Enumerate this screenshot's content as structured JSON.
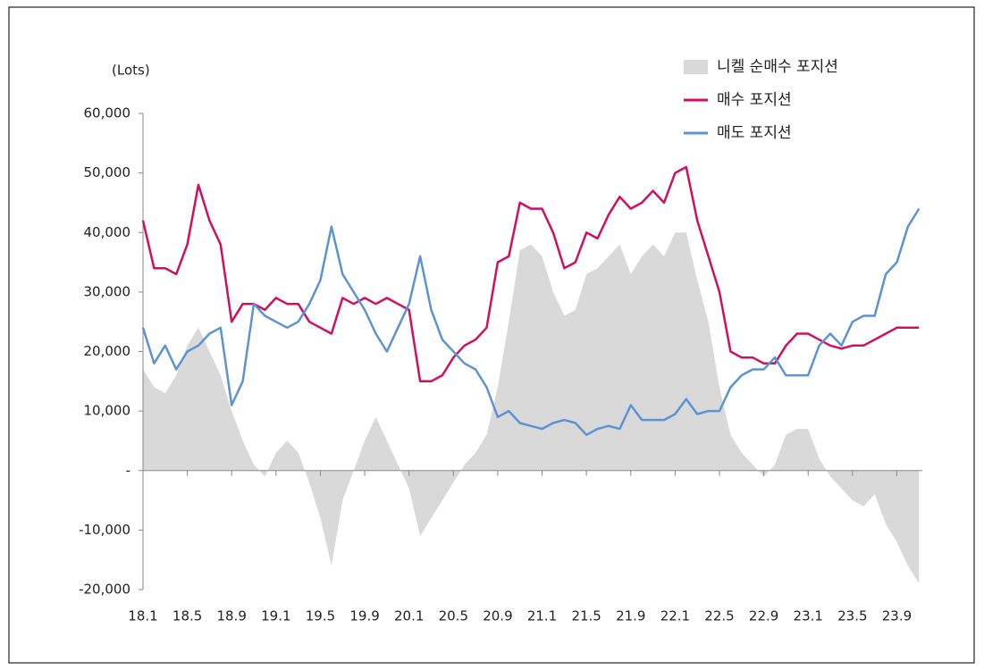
{
  "chart_data": {
    "type": "line",
    "y_label": "(Lots)",
    "categories": [
      "18.1",
      null,
      null,
      null,
      "18.5",
      null,
      null,
      null,
      "18.9",
      null,
      null,
      null,
      "19.1",
      null,
      null,
      null,
      "19.5",
      null,
      null,
      null,
      "19.9",
      null,
      null,
      null,
      "20.1",
      null,
      null,
      null,
      "20.5",
      null,
      null,
      null,
      "20.9",
      null,
      null,
      null,
      "21.1",
      null,
      null,
      null,
      "21.5",
      null,
      null,
      null,
      "21.9",
      null,
      null,
      null,
      "22.1",
      null,
      null,
      null,
      "22.5",
      null,
      null,
      null,
      "22.9",
      null,
      null,
      null,
      "23.1",
      null,
      null,
      null,
      "23.5",
      null,
      null,
      null,
      "23.9",
      null,
      null
    ],
    "series": [
      {
        "name": "니켈 순매수 포지션",
        "kind": "area",
        "color": "#d9d9d9",
        "values": [
          17000,
          14000,
          13000,
          16000,
          21000,
          24000,
          20000,
          16000,
          10000,
          5000,
          1000,
          -1000,
          3000,
          5000,
          3000,
          -2000,
          -8000,
          -16000,
          -5000,
          0,
          5000,
          9000,
          5000,
          1000,
          -3000,
          -11000,
          -8000,
          -5000,
          -2000,
          1000,
          3000,
          6000,
          14000,
          25000,
          37000,
          38000,
          36000,
          30000,
          26000,
          27000,
          33000,
          34000,
          36000,
          38000,
          33000,
          36000,
          38000,
          36000,
          40000,
          40000,
          32000,
          25000,
          14000,
          6000,
          3000,
          1000,
          -1000,
          1000,
          6000,
          7000,
          7000,
          2000,
          -1000,
          -3000,
          -5000,
          -6000,
          -4000,
          -9000,
          -12000,
          -16000,
          -19000
        ]
      },
      {
        "name": "매수 포지션",
        "kind": "line",
        "color": "#d0105e",
        "values": [
          42000,
          34000,
          34000,
          33000,
          38000,
          48000,
          42000,
          38000,
          25000,
          28000,
          28000,
          27000,
          29000,
          28000,
          28000,
          25000,
          24000,
          23000,
          29000,
          28000,
          29000,
          28000,
          29000,
          28000,
          27000,
          15000,
          15000,
          16000,
          19000,
          21000,
          22000,
          24000,
          35000,
          36000,
          45000,
          44000,
          44000,
          40000,
          34000,
          35000,
          40000,
          39000,
          43000,
          46000,
          44000,
          45000,
          47000,
          45000,
          50000,
          51000,
          42000,
          36000,
          30000,
          20000,
          19000,
          19000,
          18000,
          18000,
          21000,
          23000,
          23000,
          22000,
          21000,
          20500,
          21000,
          21000,
          22000,
          23000,
          24000,
          24000,
          24000
        ]
      },
      {
        "name": "매도 포지션",
        "kind": "line",
        "color": "#5b93d3",
        "values": [
          24000,
          18000,
          21000,
          17000,
          20000,
          21000,
          23000,
          24000,
          11000,
          15000,
          28000,
          26000,
          25000,
          24000,
          25000,
          28000,
          32000,
          41000,
          33000,
          30000,
          27000,
          23000,
          20000,
          24000,
          28000,
          36000,
          27000,
          22000,
          20000,
          18000,
          17000,
          14000,
          9000,
          10000,
          8000,
          7500,
          7000,
          8000,
          8500,
          8000,
          6000,
          7000,
          7500,
          7000,
          11000,
          8500,
          8500,
          8500,
          9500,
          12000,
          9500,
          10000,
          10000,
          14000,
          16000,
          17000,
          17000,
          19000,
          16000,
          16000,
          16000,
          21000,
          23000,
          21000,
          25000,
          26000,
          26000,
          33000,
          35000,
          41000,
          44000
        ]
      }
    ],
    "ylim": [
      -20000,
      60000
    ],
    "yticks": [
      {
        "value": -20000,
        "label": "-20,000"
      },
      {
        "value": -10000,
        "label": "-10,000"
      },
      {
        "value": 0,
        "label": "-"
      },
      {
        "value": 10000,
        "label": "10,000"
      },
      {
        "value": 20000,
        "label": "20,000"
      },
      {
        "value": 30000,
        "label": "30,000"
      },
      {
        "value": 40000,
        "label": "40,000"
      },
      {
        "value": 50000,
        "label": "50,000"
      },
      {
        "value": 60000,
        "label": "60,000"
      }
    ],
    "legend": "top-right"
  }
}
